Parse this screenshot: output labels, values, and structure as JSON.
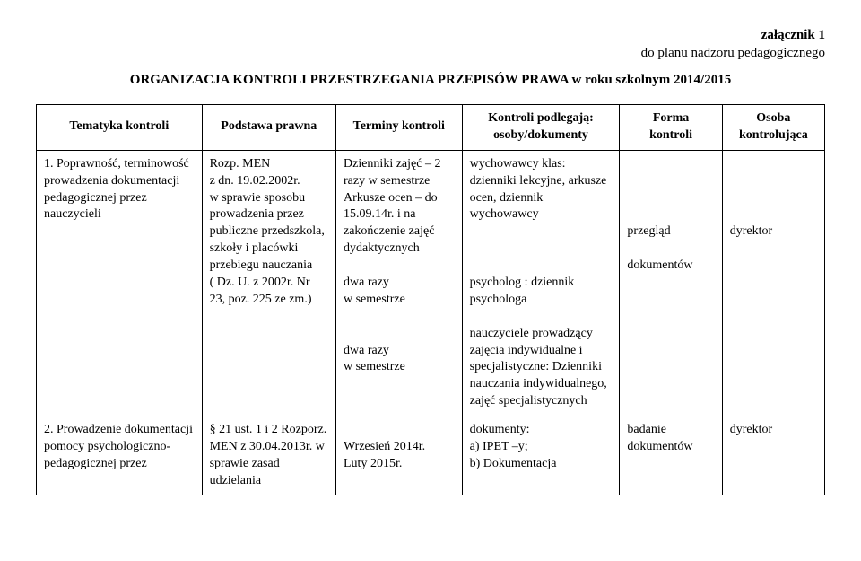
{
  "attachment_label": "załącznik 1",
  "attachment_sub": "do planu nadzoru pedagogicznego",
  "main_title": "ORGANIZACJA KONTROLI PRZESTRZEGANIA PRZEPISÓW PRAWA w roku szkolnym 2014/2015",
  "headers": {
    "col1": "Tematyka kontroli",
    "col2": "Podstawa prawna",
    "col3": "Terminy kontroli",
    "col4": "Kontroli podlegają:\nosoby/dokumenty",
    "col5": "Forma\nkontroli",
    "col6": "Osoba\nkontrolująca"
  },
  "row1": {
    "c1": "1. Poprawność, terminowość prowadzenia dokumentacji pedagogicznej przez nauczycieli",
    "c2": "Rozp. MEN\nz dn. 19.02.2002r.\nw sprawie sposobu prowadzenia przez publiczne przedszkola, szkoły i placówki przebiegu nauczania\n( Dz. U. z 2002r. Nr 23, poz. 225 ze zm.)",
    "c3": "Dzienniki zajęć – 2 razy w semestrze\nArkusze ocen – do 15.09.14r. i na zakończenie zajęć dydaktycznych\n\ndwa razy\nw semestrze\n\n\ndwa razy\nw semestrze",
    "c4": "wychowawcy klas: dzienniki lekcyjne, arkusze ocen, dziennik wychowawcy\n\n\n\npsycholog : dziennik psychologa\n\nnauczyciele prowadzący zajęcia indywidualne i specjalistyczne: Dzienniki nauczania indywidualnego, zajęć specjalistycznych",
    "c5": "\n\n\n\nprzegląd\n\ndokumentów",
    "c6": "\n\n\n\ndyrektor"
  },
  "row2": {
    "c1": "2. Prowadzenie dokumentacji pomocy psychologiczno- pedagogicznej przez",
    "c2": "§ 21 ust. 1 i 2 Rozporz. MEN z 30.04.2013r. w sprawie zasad udzielania",
    "c3": "\nWrzesień 2014r.\nLuty 2015r.",
    "c4": "dokumenty:\na) IPET –y;\nb) Dokumentacja",
    "c5": "badanie dokumentów",
    "c6": "dyrektor"
  }
}
